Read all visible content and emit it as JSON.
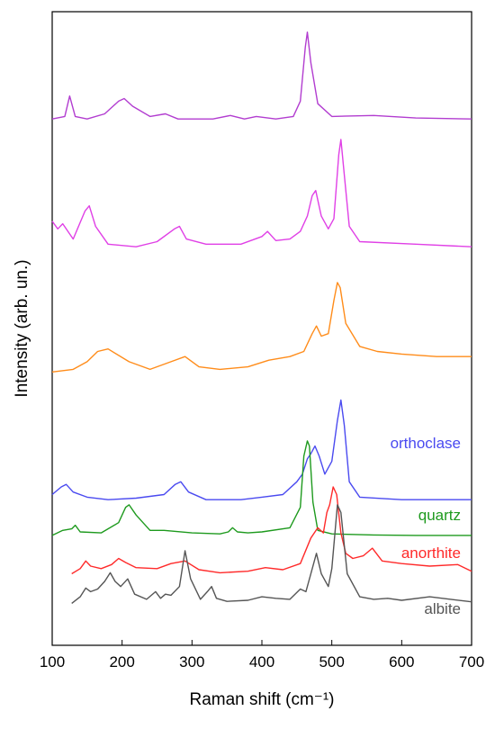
{
  "chart_data": {
    "type": "line",
    "xlabel": "Raman shift (cm⁻¹)",
    "ylabel": "Intensity (arb. un.)",
    "xlim": [
      100,
      700
    ],
    "xticks": [
      "100",
      "200",
      "300",
      "400",
      "500",
      "600",
      "700"
    ],
    "yticks_shown": false,
    "stacked_offset": true,
    "grid": false,
    "series": [
      {
        "name": "",
        "color": "#b23dd0",
        "baseline": 9.5,
        "x": [
          100,
          118,
          125,
          133,
          150,
          175,
          195,
          203,
          215,
          240,
          262,
          280,
          330,
          355,
          375,
          392,
          420,
          445,
          455,
          462,
          465,
          470,
          480,
          500,
          560,
          620,
          700
        ],
        "y": [
          9.5,
          9.55,
          9.95,
          9.55,
          9.5,
          9.6,
          9.85,
          9.9,
          9.75,
          9.55,
          9.6,
          9.5,
          9.5,
          9.57,
          9.5,
          9.55,
          9.5,
          9.55,
          9.85,
          10.9,
          11.2,
          10.6,
          9.8,
          9.55,
          9.57,
          9.52,
          9.5
        ]
      },
      {
        "name": "",
        "color": "#e040e6",
        "baseline": 7.0,
        "x": [
          100,
          108,
          115,
          130,
          147,
          153,
          162,
          180,
          220,
          250,
          275,
          282,
          292,
          320,
          370,
          400,
          408,
          420,
          440,
          455,
          465,
          472,
          477,
          485,
          495,
          503,
          510,
          513,
          518,
          525,
          540,
          620,
          700
        ],
        "y": [
          7.5,
          7.35,
          7.45,
          7.15,
          7.7,
          7.8,
          7.4,
          7.05,
          7.0,
          7.1,
          7.35,
          7.4,
          7.15,
          7.05,
          7.05,
          7.2,
          7.3,
          7.12,
          7.15,
          7.3,
          7.6,
          8.0,
          8.1,
          7.6,
          7.35,
          7.55,
          8.8,
          9.1,
          8.4,
          7.4,
          7.1,
          7.05,
          7.0
        ]
      },
      {
        "name": "",
        "color": "#ff8c1a",
        "baseline": 4.4,
        "x": [
          100,
          130,
          150,
          165,
          180,
          210,
          240,
          270,
          290,
          310,
          340,
          380,
          410,
          440,
          460,
          472,
          478,
          485,
          495,
          503,
          508,
          512,
          520,
          540,
          565,
          600,
          650,
          700
        ],
        "y": [
          4.55,
          4.6,
          4.75,
          4.95,
          5.0,
          4.75,
          4.6,
          4.75,
          4.85,
          4.65,
          4.6,
          4.65,
          4.78,
          4.85,
          4.95,
          5.3,
          5.45,
          5.25,
          5.3,
          5.95,
          6.3,
          6.2,
          5.5,
          5.05,
          4.95,
          4.9,
          4.85,
          4.85
        ]
      },
      {
        "name": "orthoclase",
        "color": "#4a4af0",
        "baseline": 2.05,
        "x": [
          100,
          113,
          120,
          130,
          150,
          180,
          220,
          260,
          276,
          284,
          295,
          320,
          370,
          400,
          430,
          450,
          458,
          465,
          470,
          476,
          482,
          490,
          500,
          508,
          513,
          518,
          525,
          540,
          600,
          700
        ],
        "y": [
          2.15,
          2.3,
          2.35,
          2.2,
          2.1,
          2.05,
          2.08,
          2.15,
          2.35,
          2.4,
          2.2,
          2.05,
          2.05,
          2.1,
          2.15,
          2.4,
          2.55,
          2.85,
          2.95,
          3.1,
          2.9,
          2.55,
          2.8,
          3.6,
          4.0,
          3.5,
          2.4,
          2.1,
          2.05,
          2.05
        ]
      },
      {
        "name": "quartz",
        "color": "#1e9a1e",
        "baseline": 1.35,
        "x": [
          100,
          115,
          128,
          133,
          140,
          170,
          195,
          205,
          210,
          220,
          240,
          260,
          300,
          340,
          352,
          358,
          365,
          380,
          400,
          440,
          455,
          460,
          465,
          468,
          473,
          480,
          500,
          560,
          620,
          700
        ],
        "y": [
          1.35,
          1.45,
          1.48,
          1.55,
          1.42,
          1.4,
          1.6,
          1.9,
          1.95,
          1.75,
          1.45,
          1.45,
          1.4,
          1.38,
          1.42,
          1.5,
          1.42,
          1.4,
          1.42,
          1.5,
          1.9,
          2.9,
          3.2,
          3.1,
          2.0,
          1.45,
          1.38,
          1.36,
          1.35,
          1.35
        ]
      },
      {
        "name": "anorthite",
        "color": "#ff2a2a",
        "baseline": 0.6,
        "x": [
          128,
          140,
          148,
          155,
          170,
          185,
          195,
          205,
          220,
          250,
          270,
          290,
          310,
          340,
          380,
          405,
          430,
          455,
          470,
          480,
          488,
          493,
          497,
          502,
          507,
          513,
          520,
          530,
          545,
          558,
          572,
          600,
          640,
          680,
          700
        ],
        "y": [
          0.6,
          0.7,
          0.85,
          0.75,
          0.7,
          0.78,
          0.9,
          0.82,
          0.72,
          0.7,
          0.8,
          0.85,
          0.68,
          0.62,
          0.65,
          0.72,
          0.68,
          0.8,
          1.3,
          1.5,
          1.4,
          1.8,
          1.95,
          2.3,
          2.15,
          1.4,
          1.0,
          0.9,
          0.95,
          1.1,
          0.85,
          0.8,
          0.75,
          0.78,
          0.65
        ]
      },
      {
        "name": "albite",
        "color": "#555555",
        "baseline": 0.0,
        "x": [
          128,
          140,
          148,
          155,
          165,
          175,
          183,
          190,
          198,
          208,
          218,
          235,
          248,
          255,
          262,
          270,
          282,
          290,
          298,
          312,
          322,
          328,
          335,
          350,
          380,
          400,
          420,
          440,
          455,
          463,
          470,
          478,
          485,
          495,
          500,
          508,
          513,
          522,
          540,
          560,
          580,
          600,
          640,
          700
        ],
        "y": [
          0.02,
          0.15,
          0.32,
          0.25,
          0.3,
          0.45,
          0.62,
          0.45,
          0.35,
          0.5,
          0.2,
          0.1,
          0.25,
          0.12,
          0.2,
          0.18,
          0.35,
          1.05,
          0.5,
          0.1,
          0.25,
          0.35,
          0.12,
          0.06,
          0.08,
          0.15,
          0.12,
          0.1,
          0.3,
          0.25,
          0.6,
          1.0,
          0.6,
          0.35,
          0.7,
          1.95,
          1.8,
          0.6,
          0.15,
          0.1,
          0.12,
          0.08,
          0.15,
          0.05
        ]
      }
    ]
  }
}
